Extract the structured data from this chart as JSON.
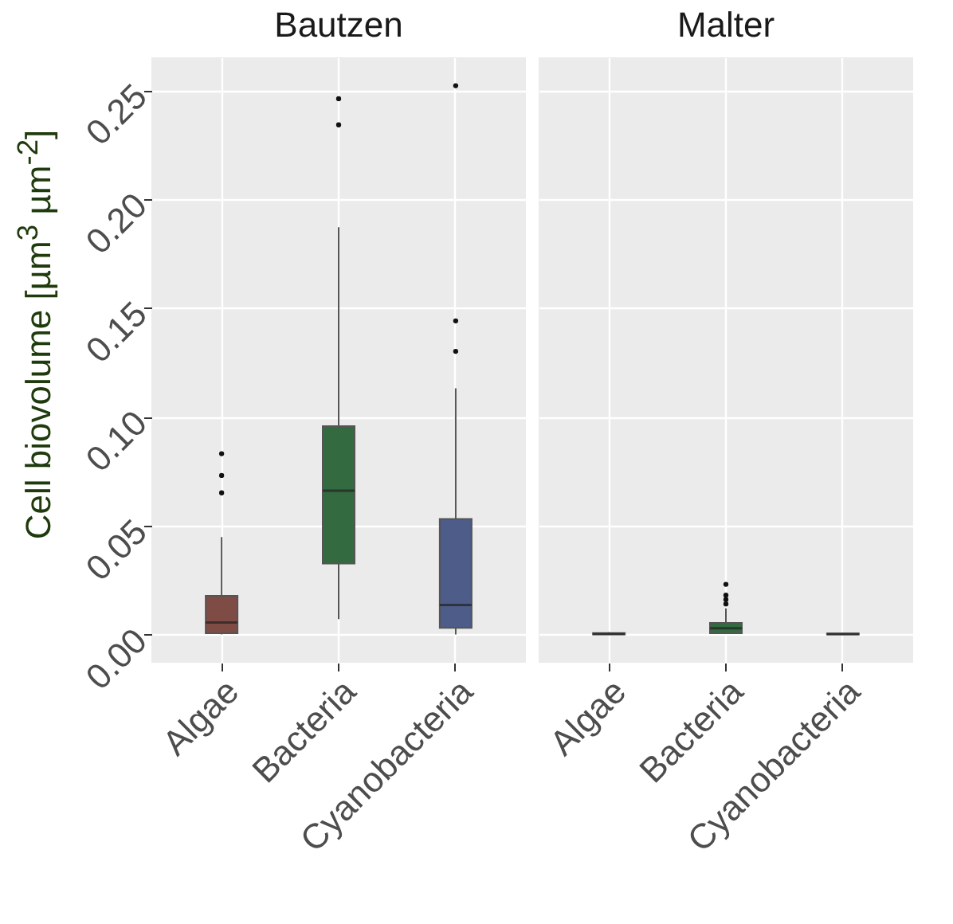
{
  "chart_data": [
    {
      "type": "box",
      "title": "Bautzen",
      "ylabel": "Cell biovolume [µm$^{3}$ µm$^{-2}$]",
      "categories": [
        "Algae",
        "Bacteria",
        "Cyanobacteria"
      ],
      "colors": [
        "#7f4b45",
        "#336a40",
        "#4d5c88"
      ],
      "ylim": [
        -0.013,
        0.265
      ],
      "yticks": [
        {
          "value": 0,
          "label": "0.00"
        },
        0.05,
        {
          "value": 0.1,
          "label": "0.10"
        },
        0.15,
        {
          "value": 0.2,
          "label": "0.20"
        },
        0.25
      ],
      "grid": true,
      "boxes": [
        {
          "low": 0.0,
          "q1": 0.0005,
          "median": 0.0055,
          "q3": 0.0177,
          "high": 0.0447,
          "outliers": [
            0.065,
            0.073,
            0.083
          ]
        },
        {
          "low": 0.007,
          "q1": 0.0325,
          "median": 0.066,
          "q3": 0.0956,
          "high": 0.187,
          "outliers": [
            0.234,
            0.246
          ]
        },
        {
          "low": 0.0,
          "q1": 0.003,
          "median": 0.0135,
          "q3": 0.053,
          "high": 0.113,
          "outliers": [
            0.13,
            0.144,
            0.252
          ]
        }
      ]
    },
    {
      "type": "box",
      "title": "Malter",
      "categories": [
        "Algae",
        "Bacteria",
        "Cyanobacteria"
      ],
      "colors": [
        "#7f4b45",
        "#336a40",
        "#4d5c88"
      ],
      "ylim": [
        -0.013,
        0.265
      ],
      "yticks": [
        0,
        0.05,
        0.1,
        0.15,
        0.2,
        0.25
      ],
      "grid": true,
      "tick_labels": "x",
      "boxes": [
        {
          "low": 0.0,
          "q1": 0.0,
          "median": 0.0003,
          "q3": 0.0006,
          "high": 0.001
        },
        {
          "low": 0.0005,
          "q1": 0.0005,
          "median": 0.0028,
          "q3": 0.0053,
          "high": 0.012,
          "outliers": [
            0.014,
            0.016,
            0.018,
            0.023
          ]
        },
        {
          "low": 0.0,
          "q1": 0.0,
          "median": 0.0002,
          "q3": 0.0004,
          "high": 0.0006
        }
      ]
    }
  ]
}
